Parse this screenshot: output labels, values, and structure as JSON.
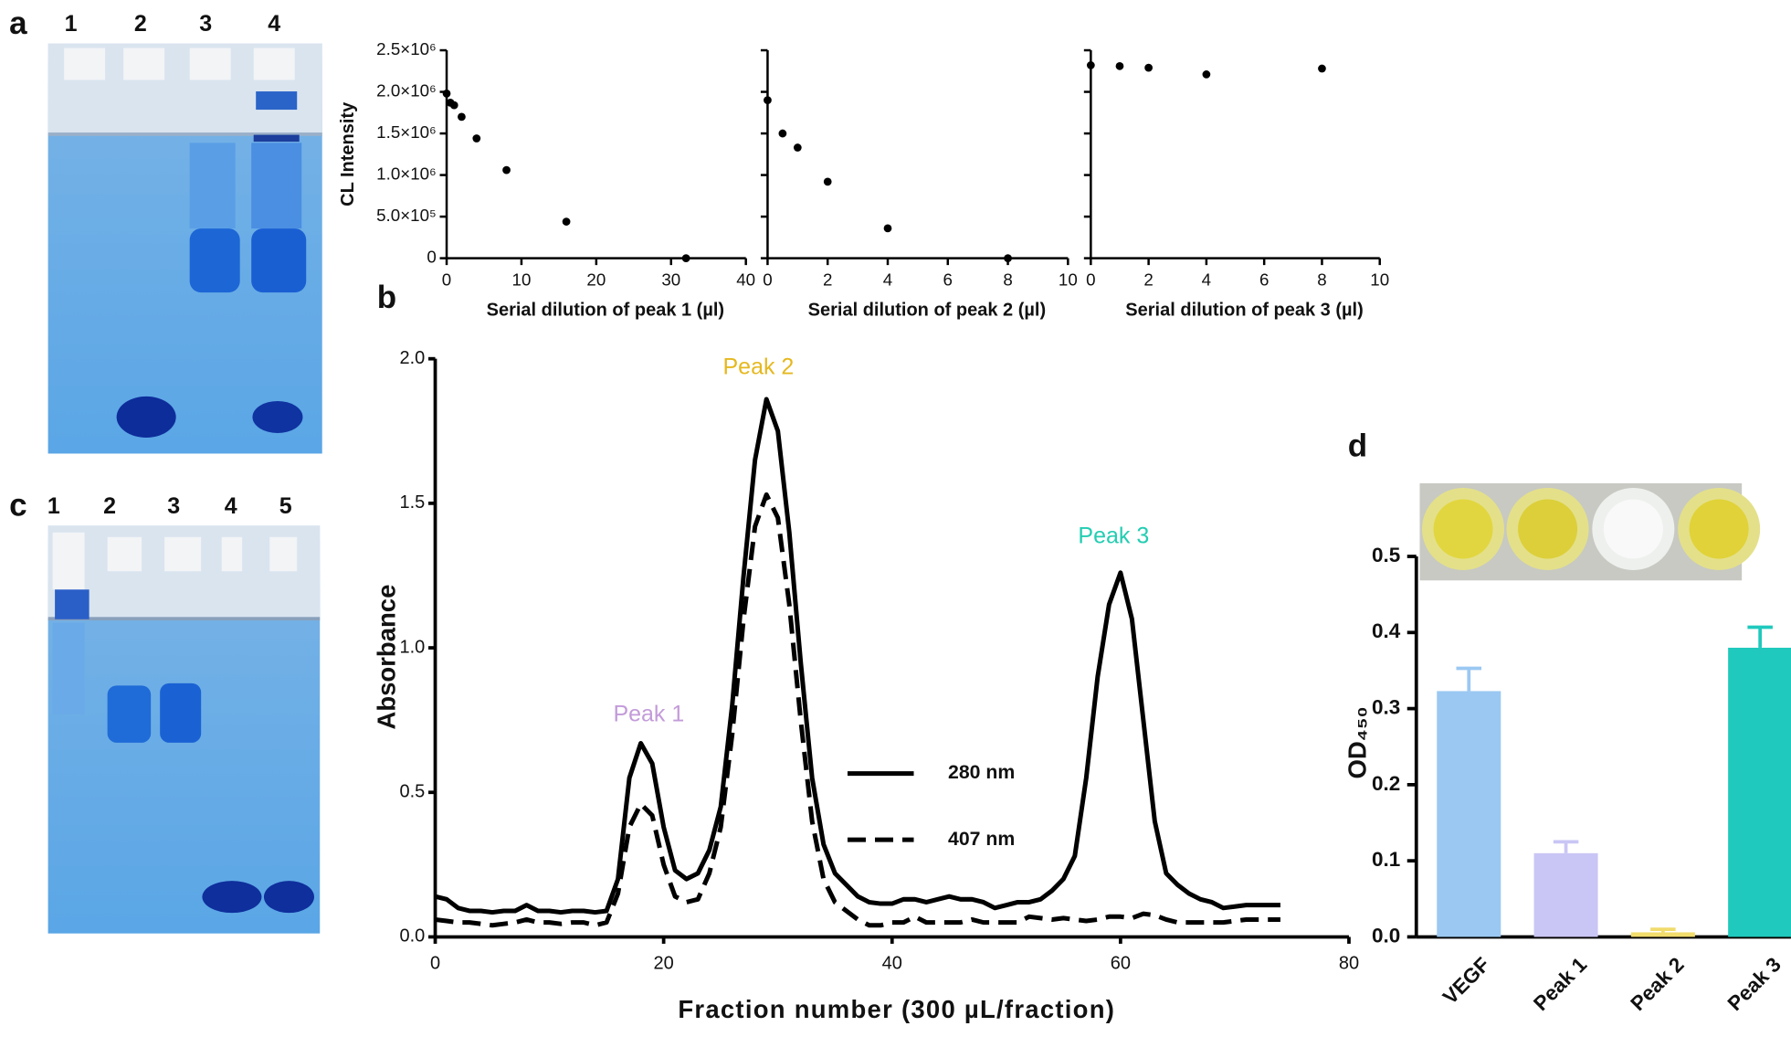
{
  "panel_labels": [
    "a",
    "b",
    "c",
    "d"
  ],
  "gels": [
    {
      "lanes": [
        "1",
        "2",
        "3",
        "4"
      ]
    },
    {
      "lanes": [
        "1",
        "2",
        "3",
        "4",
        "5"
      ]
    }
  ],
  "chart_data": [
    {
      "type": "scatter",
      "ylabel": "CL Intensity",
      "xlabel": "Serial dilution of peak 1 (µl)",
      "x": [
        0,
        0.5,
        1,
        2,
        4,
        8,
        16,
        32
      ],
      "values": [
        1980000,
        1870000,
        1840000,
        1700000,
        1440000,
        1060000,
        440000,
        0
      ],
      "color": "#000000",
      "xlim": [
        0,
        40
      ],
      "xticks": [
        0,
        10,
        20,
        30,
        40
      ],
      "ylim": [
        0,
        2500000
      ],
      "yticks": [
        0,
        {
          "value": 500000,
          "label": "5.0×10⁵"
        },
        {
          "value": 1000000,
          "label": "1.0×10⁶"
        },
        {
          "value": 1500000,
          "label": "1.5×10⁶"
        },
        {
          "value": 2000000,
          "label": "2.0×10⁶"
        },
        {
          "value": 2500000,
          "label": "2.5×10⁶"
        }
      ],
      "ytick_labels": true
    },
    {
      "type": "scatter",
      "xlabel": "Serial dilution of peak 2 (µl)",
      "x": [
        0,
        0.5,
        1,
        2,
        4,
        8
      ],
      "values": [
        1900000,
        1500000,
        1330000,
        920000,
        360000,
        0
      ],
      "color": "#000000",
      "xlim": [
        0,
        10
      ],
      "xticks": [
        0,
        2,
        4,
        6,
        8,
        10
      ],
      "ylim": [
        0,
        2500000
      ],
      "yticks": [
        0,
        500000,
        1000000,
        1500000,
        2000000,
        2500000
      ],
      "ytick_labels": false
    },
    {
      "type": "scatter",
      "xlabel": "Serial dilution of peak 3 (µl)",
      "x": [
        0,
        1,
        2,
        4,
        8
      ],
      "values": [
        2320000,
        2310000,
        2290000,
        2210000,
        2280000
      ],
      "color": "#000000",
      "xlim": [
        0,
        10
      ],
      "xticks": [
        0,
        2,
        4,
        6,
        8,
        10
      ],
      "ylim": [
        0,
        2500000
      ],
      "yticks": [
        0,
        500000,
        1000000,
        1500000,
        2000000,
        2500000
      ],
      "ytick_labels": false
    },
    {
      "type": "line",
      "xlabel": "Fraction number (300 µL/fraction)",
      "ylabel": "Absorbance",
      "x": [
        0,
        1,
        2,
        3,
        4,
        5,
        6,
        7,
        8,
        9,
        10,
        11,
        12,
        13,
        14,
        15,
        16,
        17,
        18,
        19,
        20,
        21,
        22,
        23,
        24,
        25,
        26,
        27,
        28,
        29,
        30,
        31,
        32,
        33,
        34,
        35,
        36,
        37,
        38,
        39,
        40,
        41,
        42,
        43,
        44,
        45,
        46,
        47,
        48,
        49,
        50,
        51,
        52,
        53,
        54,
        55,
        56,
        57,
        58,
        59,
        60,
        61,
        62,
        63,
        64,
        65,
        66,
        67,
        68,
        69,
        70,
        71,
        72,
        73,
        74
      ],
      "series": [
        {
          "name": "280 nm",
          "color": "#000000",
          "style": "solid",
          "values": [
            0.14,
            0.13,
            0.1,
            0.09,
            0.09,
            0.085,
            0.09,
            0.09,
            0.11,
            0.09,
            0.09,
            0.085,
            0.09,
            0.09,
            0.085,
            0.09,
            0.2,
            0.55,
            0.67,
            0.6,
            0.38,
            0.23,
            0.2,
            0.22,
            0.3,
            0.45,
            0.8,
            1.25,
            1.65,
            1.86,
            1.75,
            1.4,
            0.95,
            0.55,
            0.32,
            0.22,
            0.18,
            0.14,
            0.12,
            0.115,
            0.115,
            0.13,
            0.13,
            0.12,
            0.13,
            0.14,
            0.13,
            0.13,
            0.12,
            0.1,
            0.11,
            0.12,
            0.12,
            0.13,
            0.16,
            0.2,
            0.28,
            0.55,
            0.9,
            1.15,
            1.26,
            1.1,
            0.75,
            0.4,
            0.22,
            0.18,
            0.15,
            0.13,
            0.12,
            0.1,
            0.105,
            0.11,
            0.11,
            0.11,
            0.11
          ]
        },
        {
          "name": "407 nm",
          "color": "#000000",
          "style": "dashed",
          "values": [
            0.06,
            0.055,
            0.05,
            0.05,
            0.045,
            0.04,
            0.045,
            0.05,
            0.06,
            0.05,
            0.05,
            0.045,
            0.05,
            0.05,
            0.04,
            0.05,
            0.15,
            0.38,
            0.46,
            0.42,
            0.25,
            0.14,
            0.12,
            0.13,
            0.22,
            0.38,
            0.7,
            1.1,
            1.42,
            1.53,
            1.45,
            1.15,
            0.75,
            0.4,
            0.2,
            0.12,
            0.09,
            0.06,
            0.04,
            0.04,
            0.05,
            0.05,
            0.07,
            0.05,
            0.05,
            0.05,
            0.05,
            0.06,
            0.05,
            0.05,
            0.05,
            0.05,
            0.07,
            0.065,
            0.06,
            0.065,
            0.06,
            0.055,
            0.06,
            0.07,
            0.07,
            0.065,
            0.08,
            0.075,
            0.06,
            0.05,
            0.05,
            0.05,
            0.05,
            0.05,
            0.055,
            0.06,
            0.06,
            0.06,
            0.06
          ]
        }
      ],
      "annotations": [
        {
          "text": "Peak 1",
          "color": "#c39bd9"
        },
        {
          "text": "Peak 2",
          "color": "#e5b81f"
        },
        {
          "text": "Peak 3",
          "color": "#22cdb2"
        }
      ],
      "xlim": [
        0,
        80
      ],
      "xticks": [
        0,
        20,
        40,
        60,
        80
      ],
      "ylim": [
        0,
        2.0
      ],
      "yticks": [
        {
          "value": 0,
          "label": "0.0"
        },
        0.5,
        {
          "value": 1,
          "label": "1.0"
        },
        1.5,
        {
          "value": 2,
          "label": "2.0"
        }
      ]
    },
    {
      "type": "bar",
      "ylabel": "OD₄₅₀",
      "categories": [
        "VEGF",
        "Peak 1",
        "Peak 2",
        "Peak 3"
      ],
      "values": [
        0.323,
        0.11,
        0.006,
        0.38
      ],
      "errors": [
        0.03,
        0.015,
        0.004,
        0.027
      ],
      "colors": [
        "#9ac8f2",
        "#c9c6f5",
        "#f1dc6c",
        "#1fc9bd"
      ],
      "ylim": [
        0,
        0.5
      ],
      "yticks": [
        {
          "value": 0,
          "label": "0.0"
        },
        0.1,
        0.2,
        0.3,
        0.4,
        0.5
      ]
    }
  ]
}
